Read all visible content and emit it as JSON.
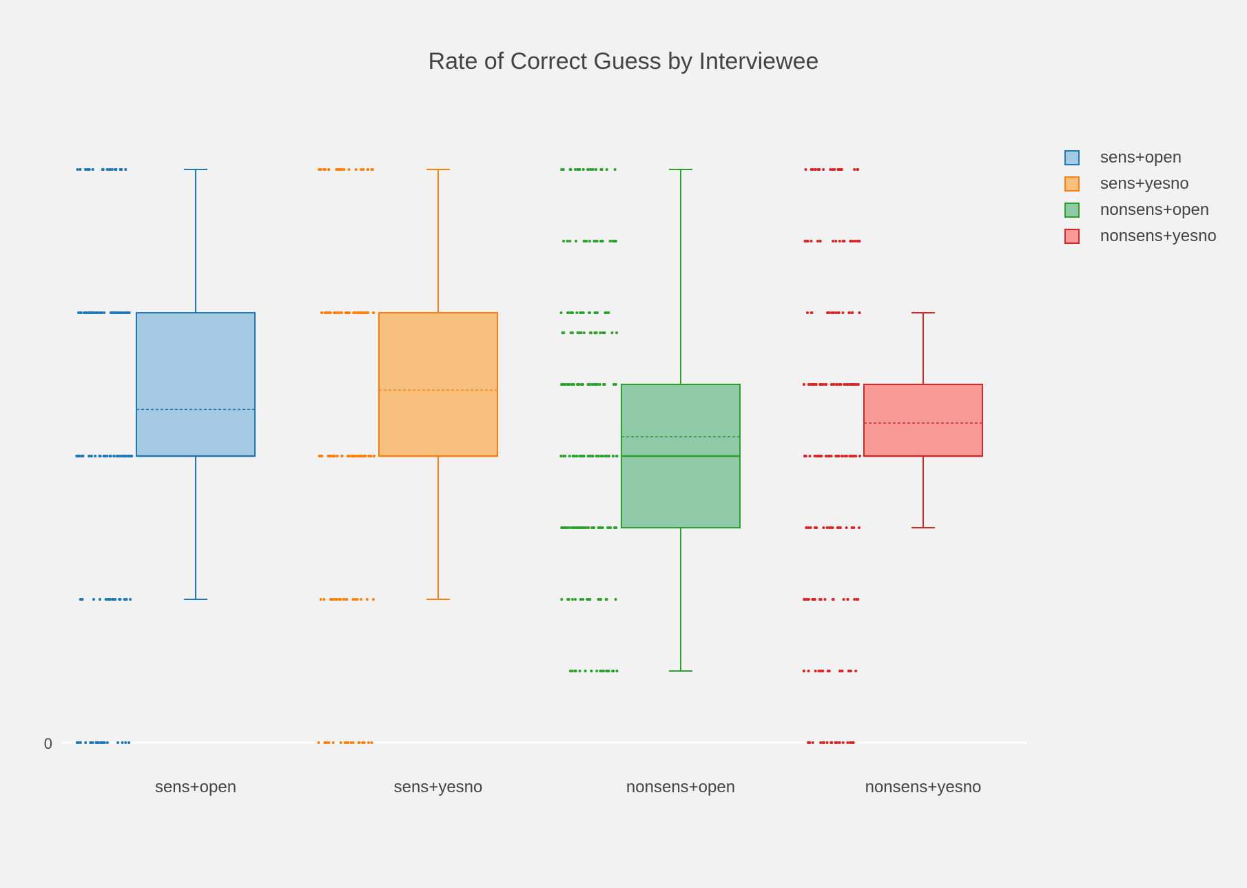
{
  "chart_data": {
    "type": "box",
    "title": "Rate of Correct Guess by Interviewee",
    "xlabel": "",
    "ylabel": "",
    "y_tick_labels": [
      "0"
    ],
    "categories": [
      "sens+open",
      "sens+yesno",
      "nonsens+open",
      "nonsens+yesno"
    ],
    "grid": false,
    "legend_position": "right",
    "boxpoints": "all",
    "show_mean": true,
    "series": [
      {
        "name": "sens+open",
        "color": "#1f77b4",
        "fill": "#a6cae3",
        "stats": {
          "min": 0.2,
          "q1": 0.4,
          "median": 0.4,
          "q3": 0.6,
          "max": 0.8,
          "mean": 0.465
        },
        "points": [
          0.8,
          0.6,
          0.4,
          0.2,
          0.0
        ]
      },
      {
        "name": "sens+yesno",
        "color": "#ff7f0e",
        "fill": "#f8c07f",
        "stats": {
          "min": 0.2,
          "q1": 0.4,
          "median": 0.4,
          "q3": 0.6,
          "max": 0.8,
          "mean": 0.492
        },
        "points": [
          0.8,
          0.6,
          0.4,
          0.2,
          0.0
        ]
      },
      {
        "name": "nonsens+open",
        "color": "#2ca02c",
        "fill": "#8fc9a8",
        "stats": {
          "min": 0.1,
          "q1": 0.3,
          "median": 0.4,
          "q3": 0.5,
          "max": 0.8,
          "mean": 0.427
        },
        "points": [
          0.8,
          0.7,
          0.6,
          0.572,
          0.5,
          0.4,
          0.3,
          0.2,
          0.1
        ]
      },
      {
        "name": "nonsens+yesno",
        "color": "#d62728",
        "fill": "#f89a98",
        "stats": {
          "min": 0.3,
          "q1": 0.4,
          "median": 0.4,
          "q3": 0.5,
          "max": 0.6,
          "mean": 0.446
        },
        "points": [
          0.8,
          0.7,
          0.6,
          0.5,
          0.4,
          0.3,
          0.2,
          0.1,
          0.0
        ]
      }
    ]
  }
}
